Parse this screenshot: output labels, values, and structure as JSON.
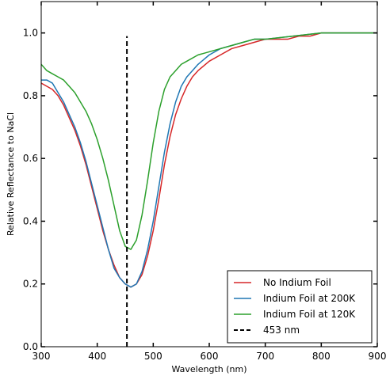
{
  "chart_data": {
    "type": "line",
    "title": "",
    "xlabel": "Wavelength (nm)",
    "ylabel": "Relative Reflectance to NaCl",
    "xlim": [
      300,
      900
    ],
    "ylim": [
      0.0,
      1.1
    ],
    "x_ticks": [
      300,
      400,
      500,
      600,
      700,
      800,
      900
    ],
    "x_tick_labels": [
      "300",
      "400",
      "500",
      "600",
      "700",
      "800",
      "900"
    ],
    "y_ticks": [
      0.0,
      0.2,
      0.4,
      0.6,
      0.8,
      1.0
    ],
    "y_tick_labels": [
      "0.0",
      "0.2",
      "0.4",
      "0.6",
      "0.8",
      "1.0"
    ],
    "grid": false,
    "legend_position": "lower-right",
    "series": [
      {
        "name": "No Indium Foil",
        "color": "#d62728",
        "style": "solid",
        "points": [
          [
            300,
            0.84
          ],
          [
            310,
            0.83
          ],
          [
            320,
            0.82
          ],
          [
            330,
            0.8
          ],
          [
            340,
            0.77
          ],
          [
            350,
            0.73
          ],
          [
            360,
            0.69
          ],
          [
            370,
            0.64
          ],
          [
            380,
            0.58
          ],
          [
            390,
            0.51
          ],
          [
            400,
            0.44
          ],
          [
            410,
            0.37
          ],
          [
            420,
            0.31
          ],
          [
            430,
            0.26
          ],
          [
            440,
            0.22
          ],
          [
            450,
            0.2
          ],
          [
            460,
            0.19
          ],
          [
            470,
            0.2
          ],
          [
            480,
            0.23
          ],
          [
            490,
            0.29
          ],
          [
            500,
            0.37
          ],
          [
            510,
            0.47
          ],
          [
            520,
            0.58
          ],
          [
            530,
            0.67
          ],
          [
            540,
            0.74
          ],
          [
            550,
            0.79
          ],
          [
            560,
            0.83
          ],
          [
            570,
            0.86
          ],
          [
            580,
            0.88
          ],
          [
            600,
            0.91
          ],
          [
            620,
            0.93
          ],
          [
            640,
            0.95
          ],
          [
            660,
            0.96
          ],
          [
            680,
            0.97
          ],
          [
            700,
            0.98
          ],
          [
            720,
            0.98
          ],
          [
            740,
            0.98
          ],
          [
            760,
            0.99
          ],
          [
            780,
            0.99
          ],
          [
            800,
            1.0
          ],
          [
            850,
            1.0
          ],
          [
            900,
            1.0
          ]
        ]
      },
      {
        "name": "Indium Foil at 200K",
        "color": "#1f77b4",
        "style": "solid",
        "points": [
          [
            300,
            0.85
          ],
          [
            310,
            0.85
          ],
          [
            320,
            0.84
          ],
          [
            330,
            0.81
          ],
          [
            340,
            0.78
          ],
          [
            350,
            0.74
          ],
          [
            360,
            0.7
          ],
          [
            370,
            0.65
          ],
          [
            380,
            0.59
          ],
          [
            390,
            0.52
          ],
          [
            400,
            0.45
          ],
          [
            410,
            0.38
          ],
          [
            420,
            0.31
          ],
          [
            430,
            0.25
          ],
          [
            440,
            0.22
          ],
          [
            450,
            0.2
          ],
          [
            460,
            0.19
          ],
          [
            470,
            0.2
          ],
          [
            480,
            0.24
          ],
          [
            490,
            0.31
          ],
          [
            500,
            0.4
          ],
          [
            510,
            0.51
          ],
          [
            520,
            0.62
          ],
          [
            530,
            0.71
          ],
          [
            540,
            0.78
          ],
          [
            550,
            0.83
          ],
          [
            560,
            0.86
          ],
          [
            570,
            0.88
          ],
          [
            580,
            0.9
          ],
          [
            600,
            0.93
          ],
          [
            620,
            0.95
          ],
          [
            640,
            0.96
          ],
          [
            660,
            0.97
          ],
          [
            680,
            0.98
          ],
          [
            700,
            0.98
          ],
          [
            750,
            0.99
          ],
          [
            800,
            1.0
          ],
          [
            850,
            1.0
          ],
          [
            900,
            1.0
          ]
        ]
      },
      {
        "name": "Indium Foil at 120K",
        "color": "#2ca02c",
        "style": "solid",
        "points": [
          [
            300,
            0.9
          ],
          [
            310,
            0.88
          ],
          [
            320,
            0.87
          ],
          [
            330,
            0.86
          ],
          [
            340,
            0.85
          ],
          [
            350,
            0.83
          ],
          [
            360,
            0.81
          ],
          [
            370,
            0.78
          ],
          [
            380,
            0.75
          ],
          [
            390,
            0.71
          ],
          [
            400,
            0.66
          ],
          [
            410,
            0.6
          ],
          [
            420,
            0.53
          ],
          [
            430,
            0.45
          ],
          [
            440,
            0.37
          ],
          [
            450,
            0.32
          ],
          [
            460,
            0.31
          ],
          [
            470,
            0.34
          ],
          [
            480,
            0.42
          ],
          [
            490,
            0.53
          ],
          [
            500,
            0.65
          ],
          [
            510,
            0.75
          ],
          [
            520,
            0.82
          ],
          [
            530,
            0.86
          ],
          [
            540,
            0.88
          ],
          [
            550,
            0.9
          ],
          [
            560,
            0.91
          ],
          [
            580,
            0.93
          ],
          [
            600,
            0.94
          ],
          [
            620,
            0.95
          ],
          [
            640,
            0.96
          ],
          [
            660,
            0.97
          ],
          [
            680,
            0.98
          ],
          [
            700,
            0.98
          ],
          [
            750,
            0.99
          ],
          [
            800,
            1.0
          ],
          [
            850,
            1.0
          ],
          [
            900,
            1.0
          ]
        ]
      },
      {
        "name": "453 nm",
        "color": "#000000",
        "style": "dashed",
        "points": [
          [
            453,
            0.0
          ],
          [
            453,
            0.99
          ]
        ]
      }
    ]
  }
}
